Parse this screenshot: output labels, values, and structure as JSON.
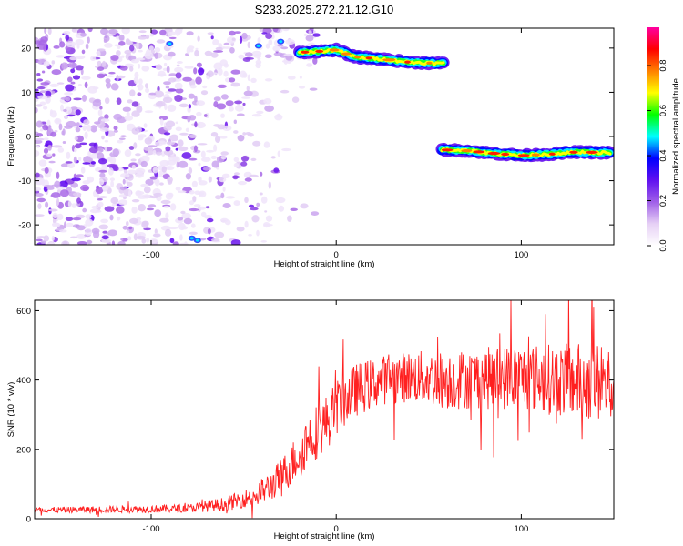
{
  "title": "S233.2025.272.21.12.G10",
  "chart_data": [
    {
      "type": "heatmap",
      "name": "spectrogram",
      "xlabel": "Height of straight line (km)",
      "ylabel": "Frequency (Hz)",
      "xlim": [
        -163,
        150
      ],
      "ylim": [
        -24.5,
        24.5
      ],
      "xticks": [
        -100,
        0,
        100
      ],
      "yticks": [
        -20,
        -10,
        0,
        10,
        20
      ],
      "colorbar": {
        "label": "Normalized spectral amplitude",
        "range": [
          0.0,
          0.97
        ],
        "ticks": [
          "0.0",
          "0.2",
          "0.4",
          "0.6",
          "0.8"
        ],
        "tick_values": [
          0.0,
          0.2,
          0.4,
          0.6,
          0.8
        ],
        "colors": [
          "#ffffff",
          "#e6d0f5",
          "#a060e8",
          "#6010f0",
          "#0000ff",
          "#00ffff",
          "#00ff00",
          "#ffff00",
          "#ff8000",
          "#ff0000",
          "#ff00a0"
        ]
      },
      "tracks": [
        {
          "name": "upper-track",
          "points": [
            [
              -20,
              19.0
            ],
            [
              -8,
              19.3
            ],
            [
              0,
              19.6
            ],
            [
              10,
              18.0
            ],
            [
              25,
              17.5
            ],
            [
              40,
              16.8
            ],
            [
              58,
              16.5
            ]
          ]
        },
        {
          "name": "lower-track",
          "points": [
            [
              57,
              -3.0
            ],
            [
              70,
              -3.2
            ],
            [
              85,
              -3.8
            ],
            [
              100,
              -4.3
            ],
            [
              115,
              -4.0
            ],
            [
              130,
              -3.5
            ],
            [
              148,
              -3.7
            ]
          ]
        }
      ],
      "noise_region": [
        -163,
        -20
      ]
    },
    {
      "type": "line",
      "name": "snr",
      "xlabel": "Height of straight line (km)",
      "ylabel": "SNR (10 * v/v)",
      "xlim": [
        -163,
        150
      ],
      "ylim": [
        0,
        630
      ],
      "xticks": [
        -100,
        0,
        100
      ],
      "yticks": [
        0,
        200,
        400,
        600
      ],
      "series": [
        {
          "name": "SNR",
          "color": "#ff2020",
          "envelope": [
            [
              -163,
              25
            ],
            [
              -100,
              28
            ],
            [
              -80,
              30
            ],
            [
              -60,
              42
            ],
            [
              -45,
              65
            ],
            [
              -35,
              95
            ],
            [
              -25,
              150
            ],
            [
              -15,
              230
            ],
            [
              -5,
              280
            ],
            [
              0,
              320
            ],
            [
              10,
              370
            ],
            [
              25,
              400
            ],
            [
              40,
              410
            ],
            [
              60,
              400
            ],
            [
              80,
              405
            ],
            [
              100,
              410
            ],
            [
              120,
              400
            ],
            [
              140,
              395
            ],
            [
              150,
              380
            ]
          ],
          "spread": [
            [
              -163,
              8
            ],
            [
              -80,
              12
            ],
            [
              -50,
              25
            ],
            [
              -30,
              50
            ],
            [
              -15,
              80
            ],
            [
              0,
              80
            ],
            [
              30,
              70
            ],
            [
              60,
              85
            ],
            [
              100,
              95
            ],
            [
              150,
              120
            ]
          ]
        }
      ]
    }
  ]
}
